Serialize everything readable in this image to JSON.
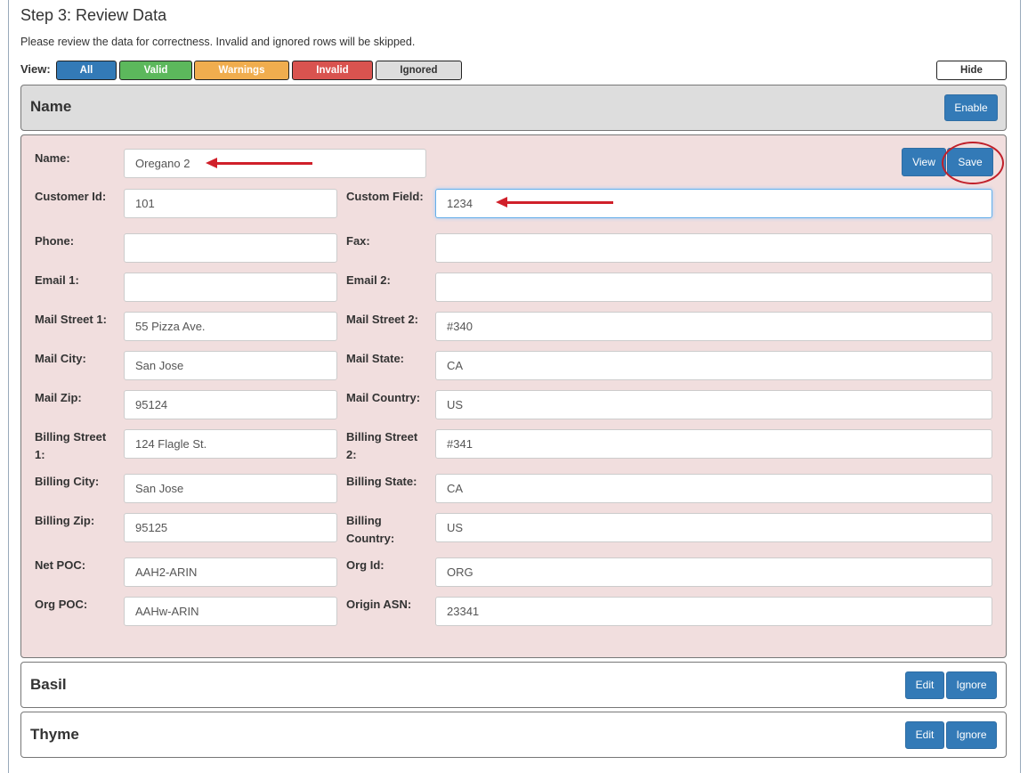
{
  "title": "Step 3: Review Data",
  "description": "Please review the data for correctness. Invalid and ignored rows will be skipped.",
  "view_label": "View:",
  "filters": [
    {
      "label": "All",
      "color": "#337ab7"
    },
    {
      "label": "Valid",
      "color": "#5cb85c"
    },
    {
      "label": "Warnings",
      "color": "#f0ad4e"
    },
    {
      "label": "Invalid",
      "color": "#d9534f"
    },
    {
      "label": "Ignored",
      "color": "#dddddd"
    }
  ],
  "hide_label": "Hide",
  "header_panel": {
    "title": "Name",
    "enable_label": "Enable"
  },
  "edit_panel": {
    "view_label": "View",
    "save_label": "Save",
    "name_label": "Name:",
    "name_value": "Oregano 2",
    "rows": [
      {
        "l": "Customer Id:",
        "lv": "101",
        "r": "Custom Field:",
        "rv": "1234"
      },
      {
        "l": "Phone:",
        "lv": "",
        "r": "Fax:",
        "rv": ""
      },
      {
        "l": "Email 1:",
        "lv": "",
        "r": "Email 2:",
        "rv": ""
      },
      {
        "l": "Mail Street 1:",
        "lv": "55 Pizza Ave.",
        "r": "Mail Street 2:",
        "rv": "#340"
      },
      {
        "l": "Mail City:",
        "lv": "San Jose",
        "r": "Mail State:",
        "rv": "CA"
      },
      {
        "l": "Mail Zip:",
        "lv": "95124",
        "r": "Mail Country:",
        "rv": "US"
      },
      {
        "l": "Billing Street 1:",
        "lv": "124 Flagle St.",
        "r": "Billing Street 2:",
        "rv": "#341"
      },
      {
        "l": "Billing City:",
        "lv": "San Jose",
        "r": "Billing State:",
        "rv": "CA"
      },
      {
        "l": "Billing Zip:",
        "lv": "95125",
        "r": "Billing Country:",
        "rv": "US"
      },
      {
        "l": "Net POC:",
        "lv": "AAH2-ARIN",
        "r": "Org Id:",
        "rv": "ORG"
      },
      {
        "l": "Org POC:",
        "lv": "AAHw-ARIN",
        "r": "Origin ASN:",
        "rv": "23341"
      }
    ]
  },
  "records": [
    {
      "title": "Basil",
      "edit_label": "Edit",
      "ignore_label": "Ignore"
    },
    {
      "title": "Thyme",
      "edit_label": "Edit",
      "ignore_label": "Ignore"
    }
  ]
}
